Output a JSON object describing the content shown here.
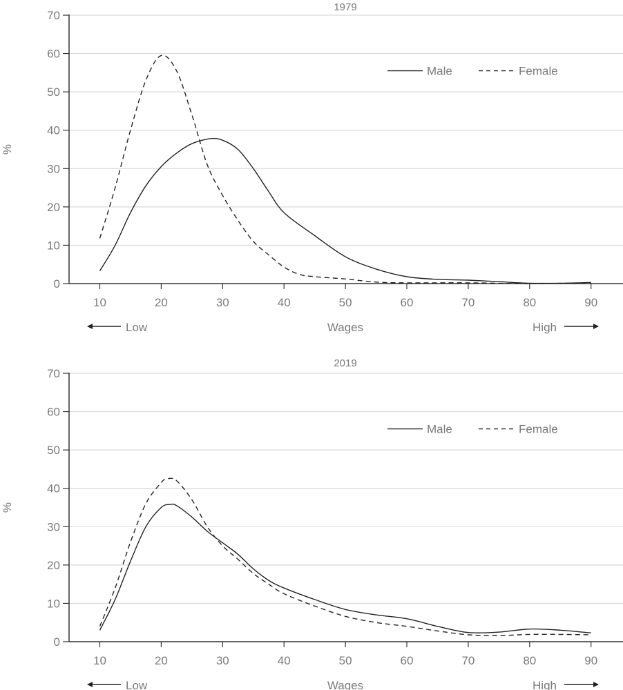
{
  "chart_data": [
    {
      "type": "line",
      "title": "1979",
      "xlabel": "Wages",
      "ylabel": "%",
      "x_low_label": "Low",
      "x_high_label": "High",
      "xticks": [
        10,
        20,
        30,
        40,
        50,
        60,
        70,
        80,
        90
      ],
      "yticks": [
        0,
        10,
        20,
        30,
        40,
        50,
        60,
        70
      ],
      "xlim": [
        5,
        95
      ],
      "ylim": [
        0,
        70
      ],
      "grid": true,
      "legend": "top-right",
      "series": [
        {
          "name": "Male",
          "style": "solid",
          "x": [
            10,
            12.5,
            15,
            17.5,
            20,
            22.5,
            25,
            28,
            30,
            32.5,
            35,
            37.5,
            40,
            45,
            50,
            55,
            60,
            65,
            70,
            75,
            80,
            85,
            90
          ],
          "y": [
            3.3,
            10,
            18.5,
            25.5,
            30.5,
            34,
            36.5,
            37.8,
            37.4,
            35,
            30,
            24,
            18.5,
            12.5,
            7,
            3.8,
            1.8,
            1.1,
            0.9,
            0.5,
            0.1,
            0.1,
            0.3
          ]
        },
        {
          "name": "Female",
          "style": "dashed",
          "x": [
            10,
            12.5,
            15,
            17.5,
            20,
            22.5,
            25,
            27.5,
            30,
            32.5,
            35,
            37.5,
            40,
            42.5,
            45,
            50,
            55,
            60,
            70,
            80,
            90
          ],
          "y": [
            11.8,
            25,
            40,
            53,
            59.5,
            55.5,
            44,
            31,
            23,
            16.5,
            11,
            7.5,
            4.3,
            2.4,
            1.8,
            1.2,
            0.4,
            0.2,
            0.2,
            0,
            0.2
          ]
        }
      ],
      "legend_labels": {
        "male": "Male",
        "female": "Female"
      }
    },
    {
      "type": "line",
      "title": "2019",
      "xlabel": "Wages",
      "ylabel": "%",
      "x_low_label": "Low",
      "x_high_label": "High",
      "xticks": [
        10,
        20,
        30,
        40,
        50,
        60,
        70,
        80,
        90
      ],
      "yticks": [
        0,
        10,
        20,
        30,
        40,
        50,
        60,
        70
      ],
      "xlim": [
        5,
        95
      ],
      "ylim": [
        0,
        70
      ],
      "grid": true,
      "legend": "top-right",
      "series": [
        {
          "name": "Male",
          "style": "solid",
          "x": [
            10,
            12.5,
            15,
            17.5,
            20,
            21.5,
            22.5,
            25,
            27.5,
            30,
            32.5,
            35,
            37.5,
            40,
            45,
            50,
            55,
            60,
            65,
            70,
            75,
            80,
            85,
            90
          ],
          "y": [
            3,
            11,
            21,
            30,
            35,
            35.8,
            35.5,
            32.5,
            28.8,
            25.8,
            22.8,
            19,
            16,
            14,
            11,
            8.4,
            7,
            6,
            4,
            2.4,
            2.5,
            3.3,
            3,
            2.3
          ]
        },
        {
          "name": "Female",
          "style": "dashed",
          "x": [
            10,
            12.5,
            15,
            17.5,
            20,
            21,
            22.5,
            25,
            27.5,
            30,
            32.5,
            35,
            37.5,
            40,
            45,
            50,
            55,
            60,
            65,
            70,
            75,
            80,
            85,
            90
          ],
          "y": [
            4,
            14,
            26,
            36,
            41.5,
            42.5,
            42,
            37,
            30,
            25,
            21.5,
            17.8,
            15,
            12.5,
            9.3,
            6.6,
            5,
            4,
            2.8,
            1.8,
            1.6,
            1.9,
            1.9,
            1.8
          ]
        }
      ],
      "legend_labels": {
        "male": "Male",
        "female": "Female"
      }
    }
  ]
}
